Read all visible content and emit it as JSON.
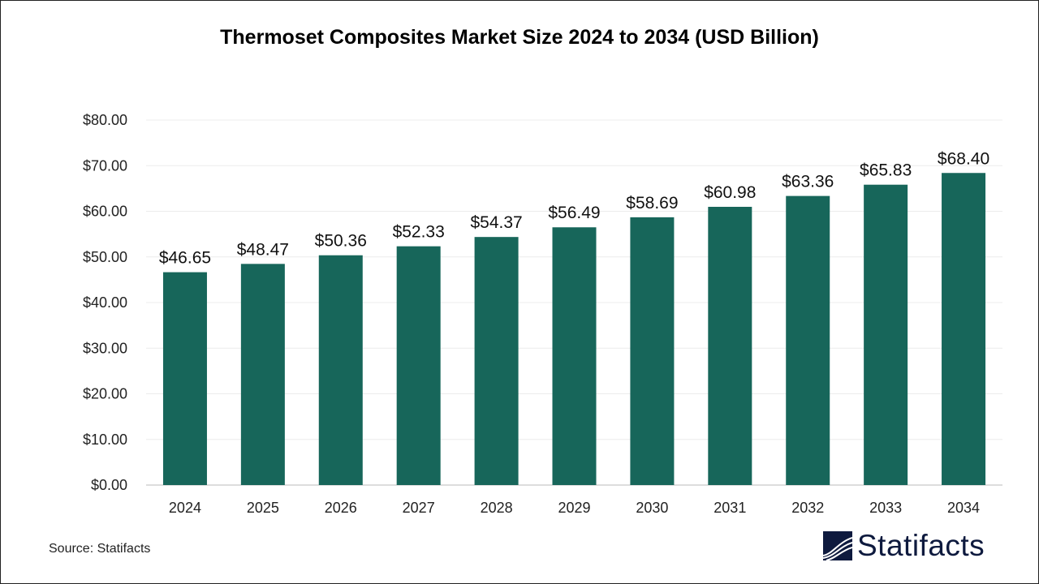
{
  "chart_data": {
    "type": "bar",
    "title": "Thermoset Composites Market Size 2024 to 2034 (USD Billion)",
    "categories": [
      "2024",
      "2025",
      "2026",
      "2027",
      "2028",
      "2029",
      "2030",
      "2031",
      "2032",
      "2033",
      "2034"
    ],
    "values": [
      46.65,
      48.47,
      50.36,
      52.33,
      54.37,
      56.49,
      58.69,
      60.98,
      63.36,
      65.83,
      68.4
    ],
    "data_labels": [
      "$46.65",
      "$48.47",
      "$50.36",
      "$52.33",
      "$54.37",
      "$56.49",
      "$58.69",
      "$60.98",
      "$63.36",
      "$65.83",
      "$68.40"
    ],
    "yticks": [
      "$0.00",
      "$10.00",
      "$20.00",
      "$30.00",
      "$40.00",
      "$50.00",
      "$60.00",
      "$70.00",
      "$80.00"
    ],
    "ylim": [
      0,
      80
    ],
    "xlabel": "",
    "ylabel": "",
    "grid": true,
    "legend": "none",
    "bar_color": "#17665a"
  },
  "source": "Source: Statifacts",
  "logo": {
    "text": "Statifacts",
    "color": "#0e1a3e"
  }
}
